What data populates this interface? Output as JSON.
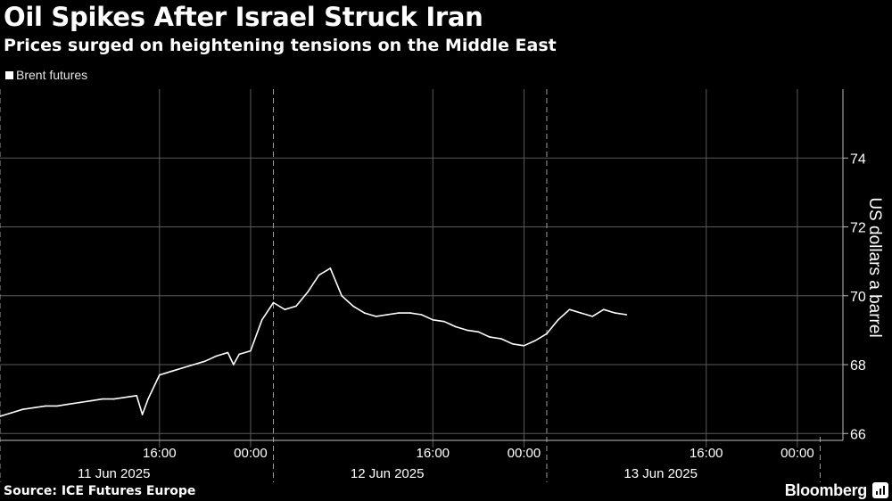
{
  "header": {
    "title": "Oil Spikes After Israel Struck Iran",
    "subtitle": "Prices surged on heightening tensions on the Middle East"
  },
  "footer": {
    "source": "Source: ICE Futures Europe",
    "brand": "Bloomberg",
    "brand_icon": "bloomberg-chart-icon"
  },
  "colors": {
    "background": "#000000",
    "line": "#ffffff",
    "grid": "#666666",
    "text": "#ffffff"
  },
  "chart_data": {
    "type": "line",
    "title": "Oil Spikes After Israel Struck Iran",
    "subtitle": "Prices surged on heightening tensions on the Middle East",
    "ylabel": "US dollars a barrel",
    "xlabel": "",
    "ylim": [
      65.8,
      76.0
    ],
    "xlim": [
      "2025-06-11 02:00",
      "2025-06-14 04:00"
    ],
    "yticks": [
      66,
      68,
      70,
      72,
      74
    ],
    "grid": true,
    "legend_position": "top-left",
    "x_time_ticks": [
      {
        "x": "2025-06-11 16:00",
        "label": "16:00"
      },
      {
        "x": "2025-06-12 00:00",
        "label": "00:00"
      },
      {
        "x": "2025-06-12 16:00",
        "label": "16:00"
      },
      {
        "x": "2025-06-13 00:00",
        "label": "00:00"
      },
      {
        "x": "2025-06-13 16:00",
        "label": "16:00"
      },
      {
        "x": "2025-06-14 00:00",
        "label": "00:00"
      }
    ],
    "x_date_labels": [
      {
        "x": "2025-06-11 12:00",
        "label": "11 Jun 2025"
      },
      {
        "x": "2025-06-12 12:00",
        "label": "12 Jun 2025"
      },
      {
        "x": "2025-06-13 12:00",
        "label": "13 Jun 2025"
      }
    ],
    "day_separators": [
      "2025-06-11 02:00",
      "2025-06-12 02:00",
      "2025-06-13 02:00",
      "2025-06-14 02:00"
    ],
    "series": [
      {
        "name": "Brent futures",
        "x": [
          "2025-06-11 02:00",
          "2025-06-11 03:00",
          "2025-06-11 04:00",
          "2025-06-11 05:00",
          "2025-06-11 06:00",
          "2025-06-11 07:00",
          "2025-06-11 08:00",
          "2025-06-11 09:00",
          "2025-06-11 10:00",
          "2025-06-11 11:00",
          "2025-06-11 12:00",
          "2025-06-11 13:00",
          "2025-06-11 14:00",
          "2025-06-11 14:30",
          "2025-06-11 15:00",
          "2025-06-11 16:00",
          "2025-06-11 16:30",
          "2025-06-11 17:00",
          "2025-06-11 17:30",
          "2025-06-11 18:00",
          "2025-06-11 19:00",
          "2025-06-11 20:00",
          "2025-06-11 21:00",
          "2025-06-11 22:00",
          "2025-06-11 22:30",
          "2025-06-11 23:00",
          "2025-06-12 00:00",
          "2025-06-12 01:00",
          "2025-06-12 02:00",
          "2025-06-12 03:00",
          "2025-06-12 04:00",
          "2025-06-12 05:00",
          "2025-06-12 06:00",
          "2025-06-12 07:00",
          "2025-06-12 08:00",
          "2025-06-12 09:00",
          "2025-06-12 10:00",
          "2025-06-12 11:00",
          "2025-06-12 12:00",
          "2025-06-12 13:00",
          "2025-06-12 14:00",
          "2025-06-12 15:00",
          "2025-06-12 16:00",
          "2025-06-12 17:00",
          "2025-06-12 18:00",
          "2025-06-12 19:00",
          "2025-06-12 20:00",
          "2025-06-12 21:00",
          "2025-06-12 22:00",
          "2025-06-12 23:00",
          "2025-06-13 00:00",
          "2025-06-13 01:00",
          "2025-06-13 02:00",
          "2025-06-13 03:00",
          "2025-06-13 04:00",
          "2025-06-13 05:00",
          "2025-06-13 06:00",
          "2025-06-13 07:00",
          "2025-06-13 08:00",
          "2025-06-13 09:00"
        ],
        "values": [
          66.5,
          66.6,
          66.7,
          66.75,
          66.8,
          66.8,
          66.85,
          66.9,
          66.95,
          67.0,
          67.0,
          67.05,
          67.1,
          66.55,
          67.0,
          67.7,
          67.75,
          67.8,
          67.85,
          67.9,
          68.0,
          68.1,
          68.25,
          68.35,
          68.0,
          68.3,
          68.4,
          69.3,
          69.8,
          69.6,
          69.7,
          70.1,
          70.6,
          70.8,
          70.0,
          69.7,
          69.5,
          69.4,
          69.45,
          69.5,
          69.5,
          69.45,
          69.3,
          69.25,
          69.1,
          69.0,
          68.95,
          68.8,
          68.75,
          68.6,
          68.55,
          68.7,
          68.9,
          69.3,
          69.6,
          69.5,
          69.4,
          69.6,
          69.5,
          69.45
        ]
      }
    ]
  }
}
